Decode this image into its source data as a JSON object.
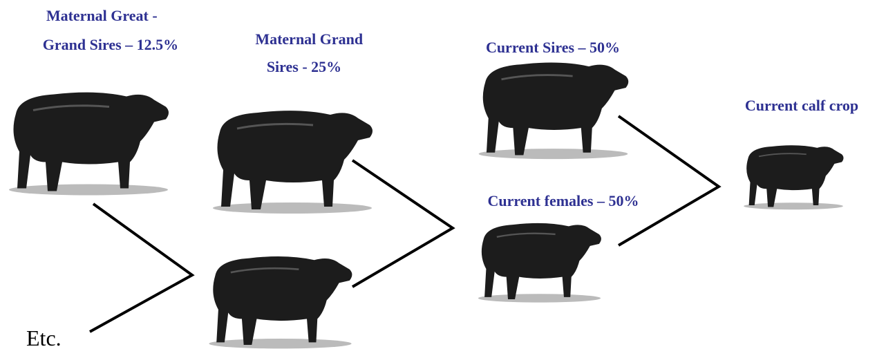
{
  "nodes": [
    {
      "label_lines": [
        "Maternal Great -",
        "Grand Sires – 12.5%"
      ]
    },
    {
      "label_lines": [
        "Maternal Grand",
        "Sires - 25%"
      ]
    },
    {
      "label_lines": [
        "Current Sires – 50%"
      ]
    },
    {
      "label_lines": [
        "Current females – 50%"
      ]
    },
    {
      "label_lines": [
        "Current calf crop"
      ]
    }
  ],
  "footnote": "Etc."
}
